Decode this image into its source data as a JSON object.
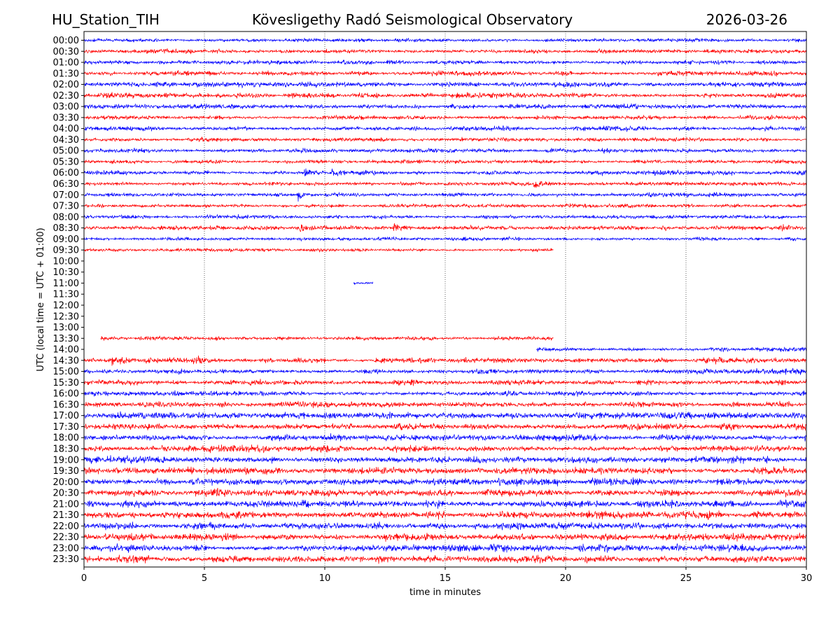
{
  "header": {
    "station": "HU_Station_TIH",
    "observatory": "Kövesligethy Radó Seismological Observatory",
    "date": "2026-03-26"
  },
  "chart_data": {
    "type": "line",
    "title": "Kövesligethy Radó Seismological Observatory",
    "xlabel": "time in minutes",
    "ylabel": "UTC (local time = UTC + 01:00)",
    "xlim": [
      0,
      30
    ],
    "xticks": [
      "0",
      "5",
      "10",
      "15",
      "20",
      "25",
      "30"
    ],
    "grid": "vertical dotted lines at every 5 minutes",
    "colors": {
      "even_rows": "#0000ff",
      "odd_rows": "#ff0000",
      "grid": "#000000"
    },
    "rows": [
      {
        "label": "00:00",
        "start": 0,
        "end": 30,
        "amp": 0.4
      },
      {
        "label": "00:30",
        "start": 0,
        "end": 30,
        "amp": 0.42
      },
      {
        "label": "01:00",
        "start": 0,
        "end": 30,
        "amp": 0.45
      },
      {
        "label": "01:30",
        "start": 0,
        "end": 30,
        "amp": 0.5
      },
      {
        "label": "02:00",
        "start": 0,
        "end": 30,
        "amp": 0.55
      },
      {
        "label": "02:30",
        "start": 0,
        "end": 30,
        "amp": 0.55
      },
      {
        "label": "03:00",
        "start": 0,
        "end": 30,
        "amp": 0.5
      },
      {
        "label": "03:30",
        "start": 0,
        "end": 30,
        "amp": 0.45
      },
      {
        "label": "04:00",
        "start": 0,
        "end": 30,
        "amp": 0.5
      },
      {
        "label": "04:30",
        "start": 0,
        "end": 30,
        "amp": 0.42
      },
      {
        "label": "05:00",
        "start": 0,
        "end": 30,
        "amp": 0.45
      },
      {
        "label": "05:30",
        "start": 0,
        "end": 30,
        "amp": 0.4
      },
      {
        "label": "06:00",
        "start": 0,
        "end": 30,
        "amp": 0.5
      },
      {
        "label": "06:30",
        "start": 0,
        "end": 30,
        "amp": 0.4
      },
      {
        "label": "07:00",
        "start": 0,
        "end": 30,
        "amp": 0.45
      },
      {
        "label": "07:30",
        "start": 0,
        "end": 30,
        "amp": 0.4
      },
      {
        "label": "08:00",
        "start": 0,
        "end": 30,
        "amp": 0.4
      },
      {
        "label": "08:30",
        "start": 0,
        "end": 30,
        "amp": 0.45
      },
      {
        "label": "09:00",
        "start": 0,
        "end": 30,
        "amp": 0.38
      },
      {
        "label": "09:30",
        "start": 0,
        "end": 19.5,
        "amp": 0.35
      },
      {
        "label": "10:00",
        "start": null,
        "end": null,
        "amp": 0
      },
      {
        "label": "10:30",
        "start": null,
        "end": null,
        "amp": 0
      },
      {
        "label": "11:00",
        "start": 11.2,
        "end": 12.0,
        "amp": 0.35
      },
      {
        "label": "11:30",
        "start": null,
        "end": null,
        "amp": 0
      },
      {
        "label": "12:00",
        "start": null,
        "end": null,
        "amp": 0
      },
      {
        "label": "12:30",
        "start": null,
        "end": null,
        "amp": 0
      },
      {
        "label": "13:00",
        "start": null,
        "end": null,
        "amp": 0
      },
      {
        "label": "13:30",
        "start": 0.7,
        "end": 19.5,
        "amp": 0.42
      },
      {
        "label": "14:00",
        "start": 18.8,
        "end": 30,
        "amp": 0.5
      },
      {
        "label": "14:30",
        "start": 0,
        "end": 30,
        "amp": 0.55
      },
      {
        "label": "15:00",
        "start": 0,
        "end": 30,
        "amp": 0.55
      },
      {
        "label": "15:30",
        "start": 0,
        "end": 30,
        "amp": 0.55
      },
      {
        "label": "16:00",
        "start": 0,
        "end": 30,
        "amp": 0.6
      },
      {
        "label": "16:30",
        "start": 0,
        "end": 30,
        "amp": 0.6
      },
      {
        "label": "17:00",
        "start": 0,
        "end": 30,
        "amp": 0.7
      },
      {
        "label": "17:30",
        "start": 0,
        "end": 30,
        "amp": 0.7
      },
      {
        "label": "18:00",
        "start": 0,
        "end": 30,
        "amp": 0.7
      },
      {
        "label": "18:30",
        "start": 0,
        "end": 30,
        "amp": 0.7
      },
      {
        "label": "19:00",
        "start": 0,
        "end": 30,
        "amp": 0.75
      },
      {
        "label": "19:30",
        "start": 0,
        "end": 30,
        "amp": 0.75
      },
      {
        "label": "20:00",
        "start": 0,
        "end": 30,
        "amp": 0.75
      },
      {
        "label": "20:30",
        "start": 0,
        "end": 30,
        "amp": 0.75
      },
      {
        "label": "21:00",
        "start": 0,
        "end": 30,
        "amp": 0.75
      },
      {
        "label": "21:30",
        "start": 0,
        "end": 30,
        "amp": 0.8
      },
      {
        "label": "22:00",
        "start": 0,
        "end": 30,
        "amp": 0.75
      },
      {
        "label": "22:30",
        "start": 0,
        "end": 30,
        "amp": 0.75
      },
      {
        "label": "23:00",
        "start": 0,
        "end": 30,
        "amp": 0.75
      },
      {
        "label": "23:30",
        "start": 0,
        "end": 30,
        "amp": 0.8
      }
    ],
    "events": [
      {
        "row": "06:00",
        "minute": 9.2,
        "amp": 1.1
      },
      {
        "row": "06:00",
        "minute": 10.3,
        "amp": 0.9
      },
      {
        "row": "06:30",
        "minute": 18.7,
        "amp": 1.4
      },
      {
        "row": "07:00",
        "minute": 8.9,
        "amp": 1.5
      },
      {
        "row": "08:30",
        "minute": 8.9,
        "amp": 1.0
      },
      {
        "row": "08:30",
        "minute": 12.9,
        "amp": 1.1
      },
      {
        "row": "08:30",
        "minute": 28.9,
        "amp": 1.0
      },
      {
        "row": "14:30",
        "minute": 1.2,
        "amp": 1.6
      },
      {
        "row": "14:30",
        "minute": 4.5,
        "amp": 1.0
      },
      {
        "row": "14:30",
        "minute": 26.2,
        "amp": 1.0
      }
    ]
  }
}
